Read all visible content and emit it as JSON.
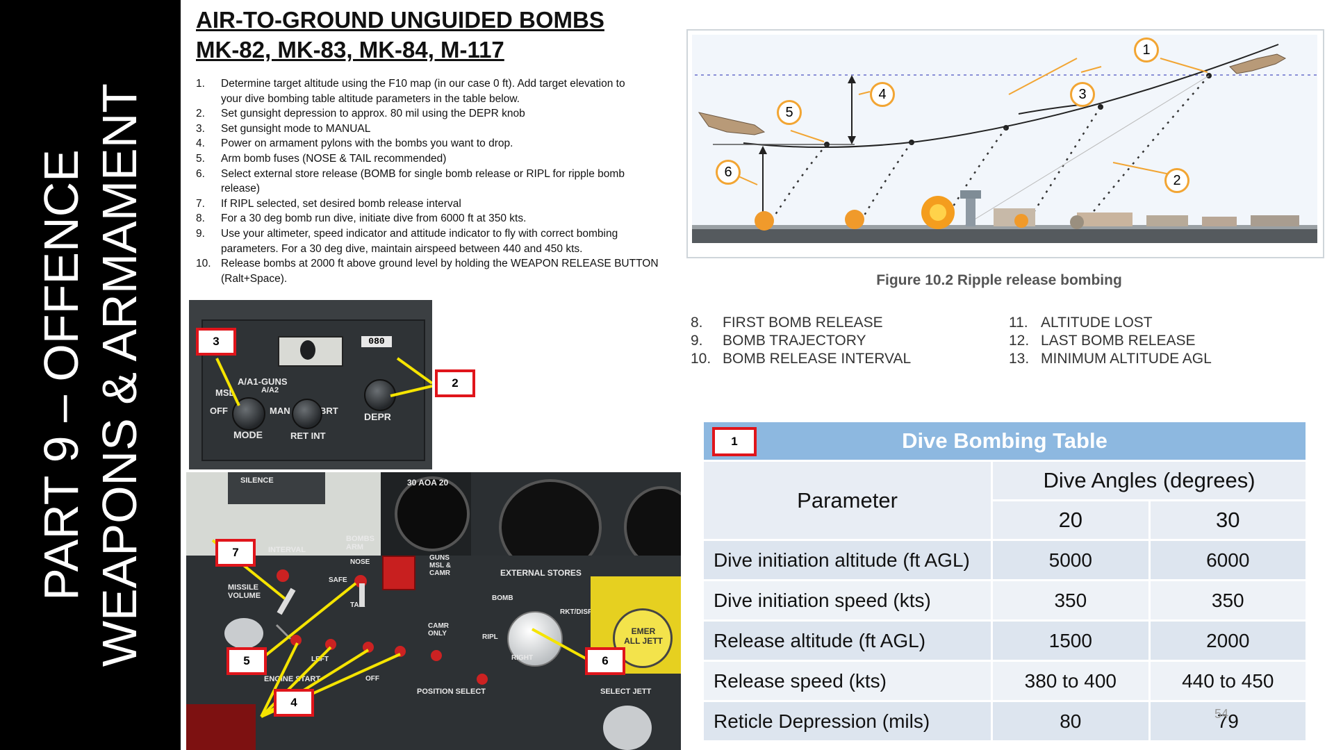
{
  "side_title": {
    "line1": "PART  9 – OFFENCE",
    "line2": "WEAPONS & ARMAMENT"
  },
  "heading": {
    "line1": "AIR-TO-GROUND UNGUIDED BOMBS",
    "line2": "MK-82, MK-83, MK-84, M-117"
  },
  "steps": [
    {
      "num": "1.",
      "lines": [
        "Determine target altitude using the F10 map (in our case 0 ft). Add target elevation to",
        "your dive bombing table altitude parameters in the table below."
      ]
    },
    {
      "num": "2.",
      "lines": [
        "Set gunsight depression to approx. 80 mil using the DEPR knob"
      ]
    },
    {
      "num": "3.",
      "lines": [
        "Set gunsight mode to MANUAL"
      ]
    },
    {
      "num": "4.",
      "lines": [
        "Power on armament pylons with the bombs you want to drop."
      ]
    },
    {
      "num": "5.",
      "lines": [
        "Arm bomb fuses (NOSE & TAIL recommended)"
      ]
    },
    {
      "num": "6.",
      "lines": [
        "Select external store release (BOMB for single bomb release or RIPL for ripple bomb",
        "release)"
      ]
    },
    {
      "num": "7.",
      "lines": [
        "If RIPL selected, set desired bomb release interval"
      ]
    },
    {
      "num": "8.",
      "lines": [
        "For a 30 deg bomb run dive, initiate dive from 6000 ft at 350 kts."
      ]
    },
    {
      "num": "9.",
      "lines": [
        "Use your altimeter, speed indicator and attitude indicator to fly with correct bombing",
        "parameters. For a 30 deg dive, maintain airspeed between 440 and 450 kts."
      ]
    },
    {
      "num": "10.",
      "lines": [
        "Release bombs at 2000 ft above ground level by holding the WEAPON RELEASE BUTTON",
        "(Ralt+Space)."
      ]
    }
  ],
  "gunsight_panel": {
    "callouts": [
      "3",
      "2"
    ],
    "labels": {
      "aa_guns": "A/A1-GUNS",
      "a_a2": "A/A2",
      "msl": "MSL",
      "off": "OFF",
      "man": "MAN",
      "brt": "BRT",
      "mode": "MODE",
      "ret_int": "RET INT",
      "depr": "DEPR",
      "counter": "080"
    }
  },
  "armament_panel": {
    "callouts": [
      "7",
      "5",
      "4",
      "6"
    ],
    "labels": {
      "silence": "SILENCE",
      "interval": "INTERVAL",
      "missile_volume": "MISSILE VOLUME",
      "bombs_arm": "BOMBS ARM",
      "nose": "NOSE",
      "tail": "TAIL",
      "safe": "SAFE",
      "guns": "GUNS MSL & CAMR",
      "external_stores": "EXTERNAL STORES",
      "bomb": "BOMB",
      "ripl": "RIPL",
      "rkt_disp": "RKT/DISP",
      "camr_only": "CAMR ONLY",
      "position_select": "POSITION SELECT",
      "engine_start": "ENGINE START",
      "emer_all_jett": "EMER ALL JETT",
      "select_jett": "SELECT JETT",
      "left": "LEFT",
      "right": "RIGHT",
      "off": "OFF",
      "aoa": "30 AOA 20"
    }
  },
  "figure": {
    "markers": [
      "1",
      "2",
      "3",
      "4",
      "5",
      "6"
    ],
    "caption": "Figure 10.2 Ripple release bombing"
  },
  "legend_left": [
    {
      "num": "8.",
      "text": "FIRST BOMB RELEASE"
    },
    {
      "num": "9.",
      "text": "BOMB TRAJECTORY"
    },
    {
      "num": "10.",
      "text": "BOMB RELEASE INTERVAL"
    }
  ],
  "legend_right": [
    {
      "num": "11.",
      "text": "ALTITUDE LOST"
    },
    {
      "num": "12.",
      "text": "LAST BOMB RELEASE"
    },
    {
      "num": "13.",
      "text": "MINIMUM ALTITUDE AGL"
    }
  ],
  "table": {
    "callout": "1",
    "title": "Dive Bombing Table",
    "param_header": "Parameter",
    "group_header": "Dive Angles (degrees)",
    "angles": [
      "20",
      "30"
    ],
    "rows": [
      {
        "param": "Dive initiation altitude (ft AGL)",
        "v20": "5000",
        "v30": "6000"
      },
      {
        "param": "Dive initiation speed (kts)",
        "v20": "350",
        "v30": "350"
      },
      {
        "param": "Release altitude (ft AGL)",
        "v20": "1500",
        "v30": "2000"
      },
      {
        "param": "Release speed (kts)",
        "v20": "380 to 400",
        "v30": "440 to 450"
      },
      {
        "param": "Reticle Depression (mils)",
        "v20": "80",
        "v30": "79"
      }
    ]
  },
  "slide_number": "54",
  "colors": {
    "band": "#000000",
    "table_title": "#8db8e0",
    "callout_border": "#e0151b",
    "arrow": "#f5e400",
    "figure_marker": "#f2a533"
  }
}
